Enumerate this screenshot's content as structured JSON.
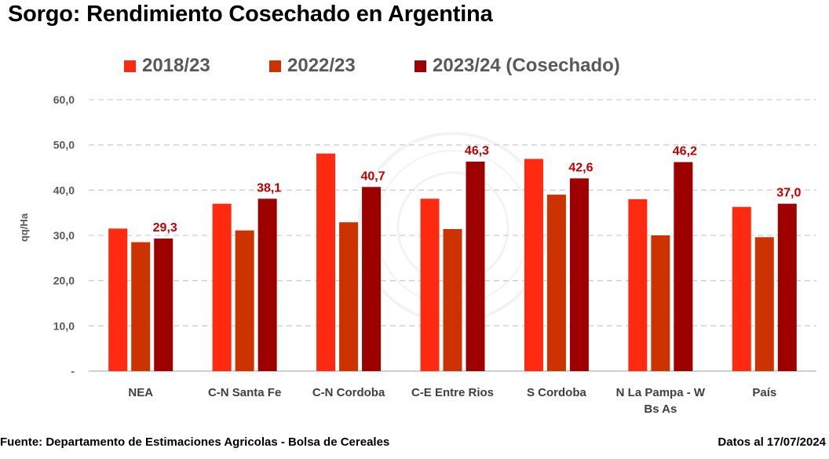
{
  "title": "Sorgo: Rendimiento Cosechado en Argentina",
  "footer": {
    "source": "Fuente: Departamento de Estimaciones Agricolas - Bolsa de Cereales",
    "date": "Datos al 17/07/2024"
  },
  "chart_data": {
    "type": "bar",
    "ylabel": "qq/Ha",
    "ylim": [
      0,
      60
    ],
    "yticks": [
      "-",
      "10,0",
      "20,0",
      "30,0",
      "40,0",
      "50,0",
      "60,0"
    ],
    "grid": true,
    "legend_position": "top",
    "categories": [
      [
        "NEA"
      ],
      [
        "C-N Santa Fe"
      ],
      [
        "C-N Cordoba"
      ],
      [
        "C-E Entre Rios"
      ],
      [
        "S Cordoba"
      ],
      [
        "N La Pampa - W",
        "Bs As"
      ],
      [
        "País"
      ]
    ],
    "series": [
      {
        "name": "2018/23",
        "color": "#ff2a10",
        "values": [
          31.5,
          37.0,
          48.1,
          38.1,
          46.9,
          38.0,
          36.3
        ],
        "labels": []
      },
      {
        "name": "2022/23",
        "color": "#cc3300",
        "values": [
          28.5,
          31.1,
          32.9,
          31.4,
          39.0,
          30.0,
          29.6
        ],
        "labels": []
      },
      {
        "name": "2023/24 (Cosechado)",
        "color": "#9e0000",
        "values": [
          29.3,
          38.1,
          40.7,
          46.3,
          42.6,
          46.2,
          37.0
        ],
        "labels": [
          "29,3",
          "38,1",
          "40,7",
          "46,3",
          "42,6",
          "46,2",
          "37,0"
        ]
      }
    ]
  }
}
